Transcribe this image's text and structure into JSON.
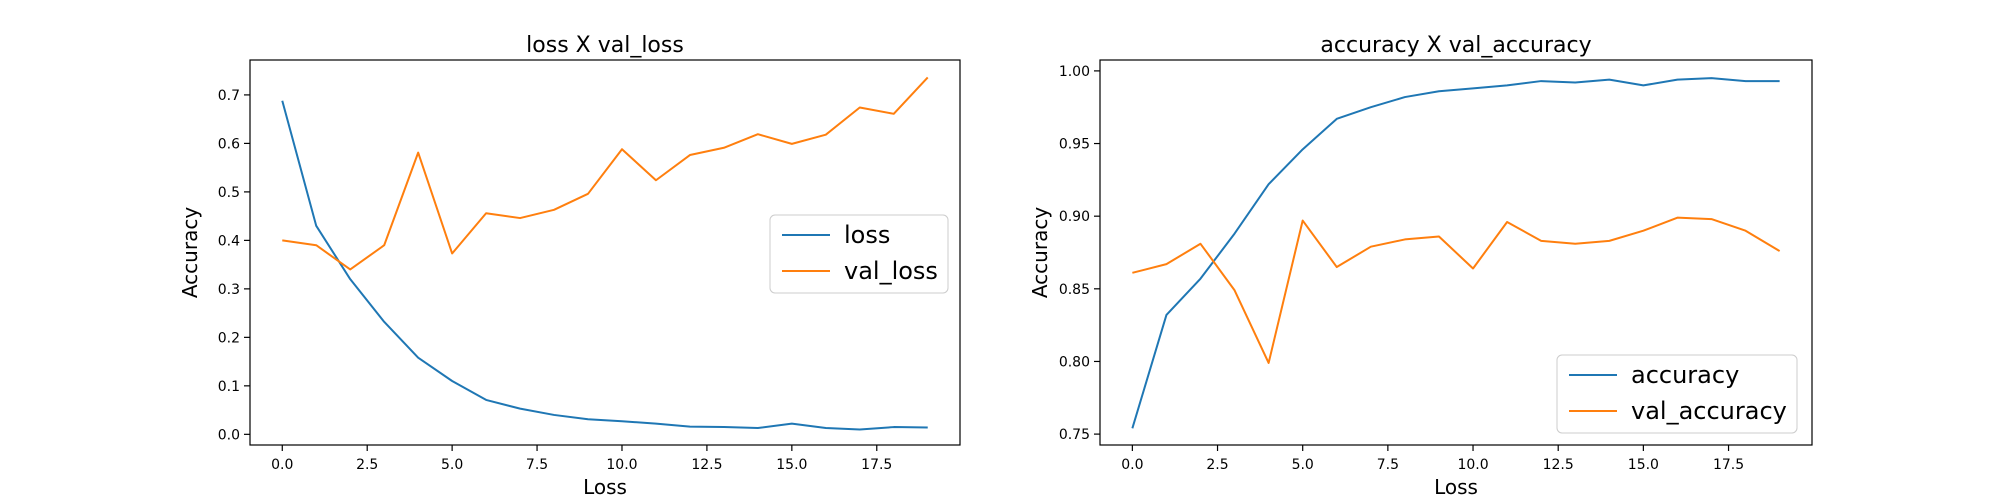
{
  "chart_data": [
    {
      "type": "line",
      "title": "loss X val_loss",
      "xlabel": "Loss",
      "ylabel": "Accuracy",
      "xlim": [
        -0.95,
        19.95
      ],
      "ylim": [
        -0.022,
        0.772
      ],
      "xticks": [
        0.0,
        2.5,
        5.0,
        7.5,
        10.0,
        12.5,
        15.0,
        17.5
      ],
      "xtick_labels": [
        "0.0",
        "2.5",
        "5.0",
        "7.5",
        "10.0",
        "12.5",
        "15.0",
        "17.5"
      ],
      "yticks": [
        0.0,
        0.1,
        0.2,
        0.3,
        0.4,
        0.5,
        0.6,
        0.7
      ],
      "ytick_labels": [
        "0.0",
        "0.1",
        "0.2",
        "0.3",
        "0.4",
        "0.5",
        "0.6",
        "0.7"
      ],
      "grid": false,
      "legend_position": "center-right",
      "x": [
        0,
        1,
        2,
        3,
        4,
        5,
        6,
        7,
        8,
        9,
        10,
        11,
        12,
        13,
        14,
        15,
        16,
        17,
        18,
        19
      ],
      "series": [
        {
          "name": "loss",
          "color": "#1f77b4",
          "values": [
            0.688,
            0.43,
            0.32,
            0.232,
            0.158,
            0.11,
            0.071,
            0.053,
            0.04,
            0.031,
            0.027,
            0.022,
            0.016,
            0.015,
            0.013,
            0.022,
            0.013,
            0.01,
            0.015,
            0.014
          ]
        },
        {
          "name": "val_loss",
          "color": "#ff7f0e",
          "values": [
            0.4,
            0.39,
            0.34,
            0.39,
            0.581,
            0.373,
            0.456,
            0.446,
            0.463,
            0.496,
            0.588,
            0.524,
            0.576,
            0.591,
            0.619,
            0.599,
            0.618,
            0.674,
            0.661,
            0.736
          ]
        }
      ]
    },
    {
      "type": "line",
      "title": "accuracy X val_accuracy",
      "xlabel": "Loss",
      "ylabel": "Accuracy",
      "xlim": [
        -0.95,
        19.95
      ],
      "ylim": [
        0.7425,
        1.0075
      ],
      "xticks": [
        0.0,
        2.5,
        5.0,
        7.5,
        10.0,
        12.5,
        15.0,
        17.5
      ],
      "xtick_labels": [
        "0.0",
        "2.5",
        "5.0",
        "7.5",
        "10.0",
        "12.5",
        "15.0",
        "17.5"
      ],
      "yticks": [
        0.75,
        0.8,
        0.85,
        0.9,
        0.95,
        1.0
      ],
      "ytick_labels": [
        "0.75",
        "0.80",
        "0.85",
        "0.90",
        "0.95",
        "1.00"
      ],
      "grid": false,
      "legend_position": "lower-right",
      "x": [
        0,
        1,
        2,
        3,
        4,
        5,
        6,
        7,
        8,
        9,
        10,
        11,
        12,
        13,
        14,
        15,
        16,
        17,
        18,
        19
      ],
      "series": [
        {
          "name": "accuracy",
          "color": "#1f77b4",
          "values": [
            0.754,
            0.832,
            0.857,
            0.888,
            0.922,
            0.946,
            0.967,
            0.975,
            0.982,
            0.986,
            0.988,
            0.99,
            0.993,
            0.992,
            0.994,
            0.99,
            0.994,
            0.995,
            0.993,
            0.993
          ]
        },
        {
          "name": "val_accuracy",
          "color": "#ff7f0e",
          "values": [
            0.861,
            0.867,
            0.881,
            0.849,
            0.799,
            0.897,
            0.865,
            0.879,
            0.884,
            0.886,
            0.864,
            0.896,
            0.883,
            0.881,
            0.883,
            0.89,
            0.899,
            0.898,
            0.89,
            0.876
          ]
        }
      ]
    }
  ]
}
